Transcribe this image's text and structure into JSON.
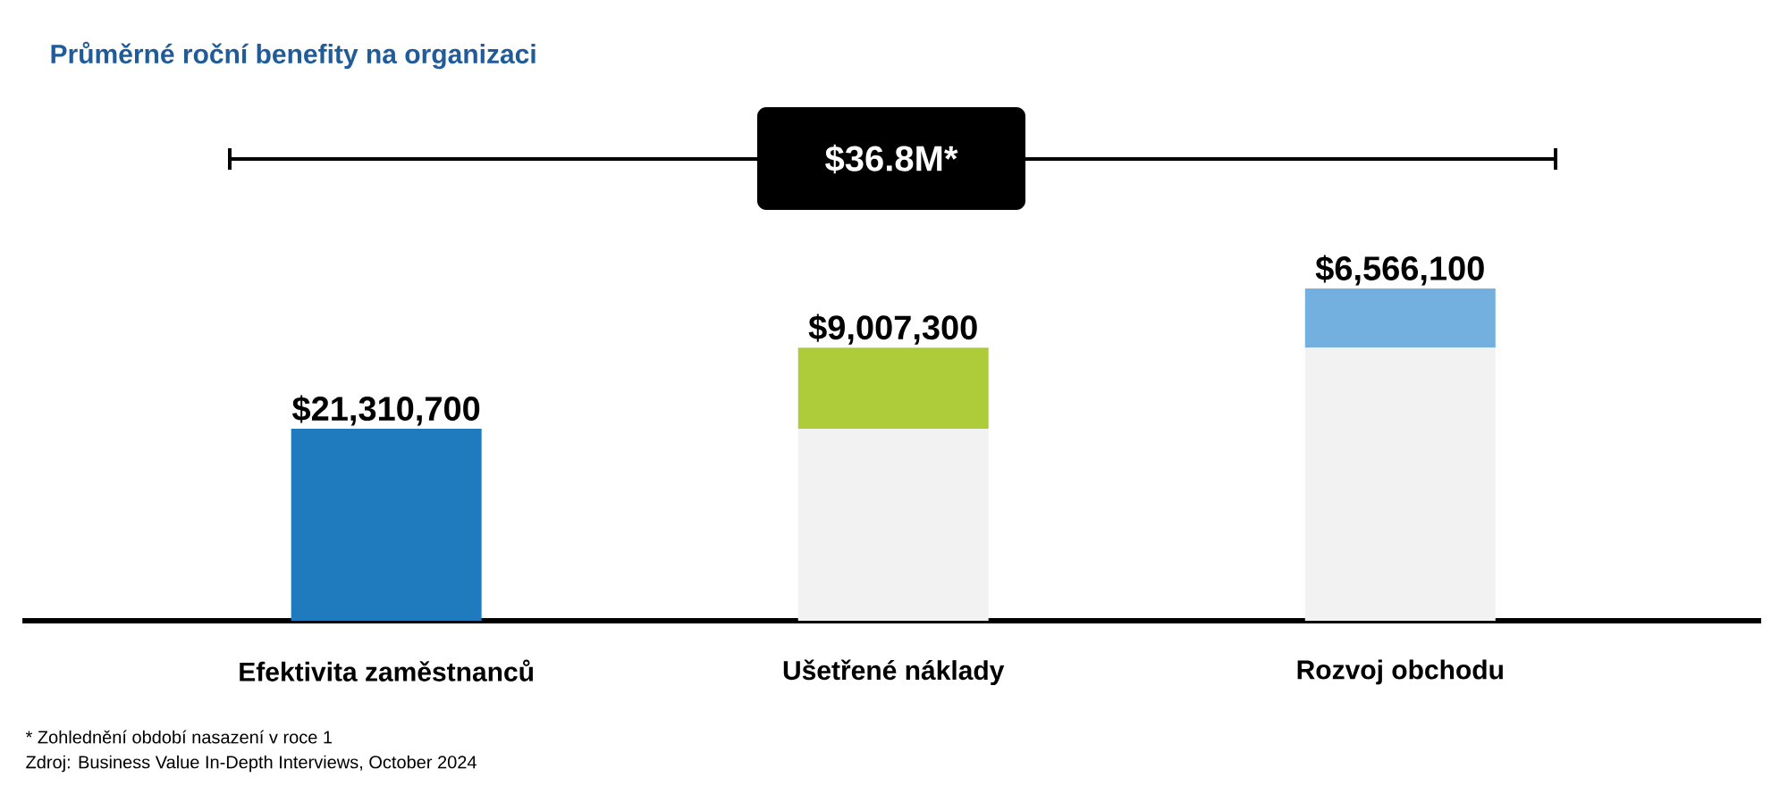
{
  "chart_data": {
    "type": "bar",
    "stacked": true,
    "title": "Průměrné roční benefity na organizaci",
    "categories": [
      "Efektivita zaměstnanců",
      "Ušetřené náklady",
      "Rozvoj obchodu"
    ],
    "series": [
      {
        "color": "#f2f2f2",
        "values": [
          null,
          21310700,
          30318000
        ]
      },
      {
        "colors": [
          "#1f7bbd",
          "#aecb3a",
          "#74b0df"
        ],
        "values": [
          21310700,
          9007300,
          6566100
        ],
        "value_labels": [
          "$21,310,700",
          "$9,007,300",
          "$6,566,100"
        ]
      }
    ],
    "annotations": [
      "$36.8M*",
      "* Zohlednění období nasazení v roce 1",
      "Zdroj: Business Value In-Depth Interviews, October 2024"
    ]
  }
}
